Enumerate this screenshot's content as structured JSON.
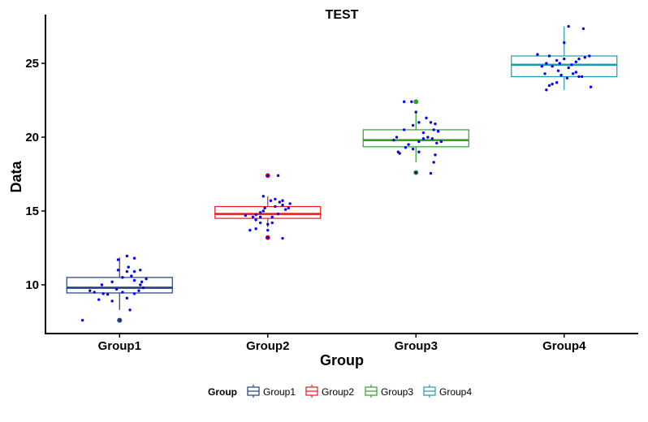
{
  "chart_data": {
    "type": "boxplot",
    "title": "TEST",
    "xlabel": "Group",
    "ylabel": "Data",
    "ylim": [
      6.7,
      28.3
    ],
    "yticks": [
      10,
      15,
      20,
      25
    ],
    "categories": [
      "Group1",
      "Group2",
      "Group3",
      "Group4"
    ],
    "legend": {
      "title": "Group",
      "position": "bottom"
    },
    "grid": false,
    "point_color": "#0000FF",
    "series": [
      {
        "name": "Group1",
        "color": "#1F3F7F",
        "q1": 9.45,
        "median": 9.8,
        "q3": 10.5,
        "whisker_low": 8.3,
        "whisker_high": 11.85,
        "outliers": [
          7.6
        ],
        "points": [
          [
            -0.25,
            7.6
          ],
          [
            -0.14,
            9.0
          ],
          [
            -0.17,
            9.5
          ],
          [
            -0.2,
            9.6
          ],
          [
            -0.11,
            9.4
          ],
          [
            -0.08,
            9.35
          ],
          [
            -0.05,
            8.9
          ],
          [
            -0.02,
            9.7
          ],
          [
            0.02,
            9.5
          ],
          [
            0.05,
            9.1
          ],
          [
            0.1,
            9.4
          ],
          [
            0.13,
            9.6
          ],
          [
            0.16,
            9.8
          ],
          [
            0.14,
            10.0
          ],
          [
            0.1,
            10.3
          ],
          [
            0.15,
            10.2
          ],
          [
            0.18,
            10.4
          ],
          [
            -0.05,
            10.2
          ],
          [
            0.05,
            10.9
          ],
          [
            0.08,
            10.6
          ],
          [
            0.1,
            10.9
          ],
          [
            0.1,
            11.8
          ],
          [
            0.06,
            11.2
          ],
          [
            0.14,
            11.0
          ],
          [
            0.02,
            10.5
          ],
          [
            -0.01,
            11.0
          ],
          [
            0.05,
            11.95
          ],
          [
            -0.01,
            11.7
          ],
          [
            0.07,
            8.3
          ],
          [
            -0.12,
            10.0
          ]
        ]
      },
      {
        "name": "Group2",
        "color": "#E31A1C",
        "q1": 14.5,
        "median": 14.8,
        "q3": 15.3,
        "whisker_low": 13.9,
        "whisker_high": 16.0,
        "outliers": [
          17.4,
          13.2
        ],
        "points": [
          [
            0.0,
            17.4
          ],
          [
            0.07,
            17.4
          ],
          [
            0.0,
            13.2
          ],
          [
            0.1,
            13.15
          ],
          [
            -0.12,
            13.7
          ],
          [
            -0.08,
            13.8
          ],
          [
            -0.05,
            14.2
          ],
          [
            -0.1,
            14.6
          ],
          [
            -0.15,
            14.7
          ],
          [
            -0.08,
            14.75
          ],
          [
            -0.05,
            14.9
          ],
          [
            -0.03,
            15.0
          ],
          [
            0.03,
            14.6
          ],
          [
            0.07,
            14.8
          ],
          [
            0.03,
            14.2
          ],
          [
            0.0,
            13.7
          ],
          [
            -0.05,
            14.6
          ],
          [
            -0.08,
            14.4
          ],
          [
            0.05,
            15.3
          ],
          [
            0.1,
            15.4
          ],
          [
            0.14,
            15.2
          ],
          [
            0.15,
            15.5
          ],
          [
            0.08,
            15.6
          ],
          [
            0.02,
            15.7
          ],
          [
            0.05,
            15.8
          ],
          [
            0.1,
            15.7
          ],
          [
            -0.03,
            16.0
          ],
          [
            0.12,
            15.1
          ],
          [
            0.0,
            14.1
          ],
          [
            -0.02,
            15.2
          ]
        ]
      },
      {
        "name": "Group3",
        "color": "#33A02C",
        "q1": 19.35,
        "median": 19.8,
        "q3": 20.5,
        "whisker_low": 18.3,
        "whisker_high": 21.7,
        "outliers": [
          22.4,
          17.6
        ],
        "points": [
          [
            -0.08,
            22.4
          ],
          [
            -0.03,
            22.4
          ],
          [
            0.0,
            17.6
          ],
          [
            0.1,
            17.55
          ],
          [
            0.12,
            18.3
          ],
          [
            0.13,
            18.8
          ],
          [
            -0.12,
            19.0
          ],
          [
            -0.11,
            18.9
          ],
          [
            -0.15,
            19.8
          ],
          [
            -0.13,
            20.0
          ],
          [
            -0.07,
            19.3
          ],
          [
            -0.05,
            19.5
          ],
          [
            -0.02,
            19.2
          ],
          [
            0.02,
            19.7
          ],
          [
            0.05,
            19.9
          ],
          [
            0.08,
            20.0
          ],
          [
            0.11,
            19.9
          ],
          [
            0.14,
            19.6
          ],
          [
            0.17,
            19.7
          ],
          [
            0.15,
            20.4
          ],
          [
            0.12,
            20.5
          ],
          [
            0.13,
            20.9
          ],
          [
            0.1,
            21.0
          ],
          [
            0.07,
            21.3
          ],
          [
            0.02,
            21.0
          ],
          [
            -0.02,
            20.8
          ],
          [
            -0.08,
            20.5
          ],
          [
            0.0,
            21.7
          ],
          [
            0.05,
            20.3
          ],
          [
            0.02,
            19.0
          ]
        ]
      },
      {
        "name": "Group4",
        "color": "#1F9BAF",
        "q1": 24.1,
        "median": 24.9,
        "q3": 25.5,
        "whisker_low": 23.2,
        "whisker_high": 27.5,
        "outliers": [],
        "points": [
          [
            0.03,
            27.5
          ],
          [
            0.13,
            27.35
          ],
          [
            0.0,
            26.4
          ],
          [
            0.18,
            23.4
          ],
          [
            -0.12,
            23.2
          ],
          [
            -0.08,
            23.6
          ],
          [
            -0.1,
            23.5
          ],
          [
            -0.05,
            23.7
          ],
          [
            -0.02,
            24.2
          ],
          [
            0.02,
            24.0
          ],
          [
            0.06,
            24.3
          ],
          [
            0.1,
            24.1
          ],
          [
            0.12,
            24.1
          ],
          [
            -0.13,
            24.3
          ],
          [
            -0.15,
            24.8
          ],
          [
            -0.12,
            25.0
          ],
          [
            -0.18,
            25.6
          ],
          [
            -0.1,
            25.5
          ],
          [
            -0.05,
            25.2
          ],
          [
            -0.03,
            25.0
          ],
          [
            0.0,
            25.3
          ],
          [
            0.05,
            24.9
          ],
          [
            0.08,
            25.1
          ],
          [
            0.1,
            25.3
          ],
          [
            0.14,
            25.4
          ],
          [
            0.17,
            25.5
          ],
          [
            -0.04,
            24.5
          ],
          [
            0.03,
            24.7
          ],
          [
            -0.08,
            24.8
          ],
          [
            0.08,
            24.4
          ]
        ]
      }
    ]
  }
}
